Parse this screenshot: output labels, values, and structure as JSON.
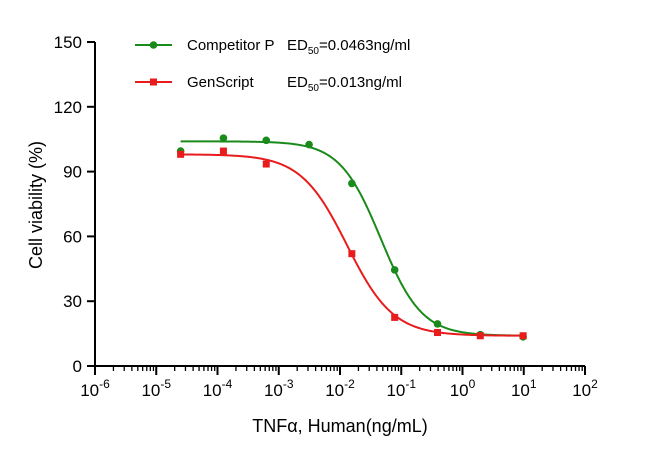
{
  "chart_data": {
    "type": "scatter",
    "xlabel": "TNFα, Human(ng/mL)",
    "ylabel": "Cell viability (%)",
    "x_scale": "log",
    "xlim": [
      1e-06,
      100
    ],
    "ylim": [
      0,
      150
    ],
    "x_ticks": [
      {
        "base": "10",
        "exp": "-6"
      },
      {
        "base": "10",
        "exp": "-5"
      },
      {
        "base": "10",
        "exp": "-4"
      },
      {
        "base": "10",
        "exp": "-3"
      },
      {
        "base": "10",
        "exp": "-2"
      },
      {
        "base": "10",
        "exp": "-1"
      },
      {
        "base": "10",
        "exp": "0"
      },
      {
        "base": "10",
        "exp": "1"
      },
      {
        "base": "10",
        "exp": "2"
      }
    ],
    "y_ticks": [
      "0",
      "30",
      "60",
      "90",
      "120",
      "150"
    ],
    "legend_position": "top-left",
    "series": [
      {
        "name": "Competitor P",
        "ed50_label": "ED",
        "ed50_sub": "50",
        "ed50_value": "=0.0463ng/ml",
        "color": "#1a8a1a",
        "marker": "circle",
        "x": [
          2.5e-05,
          0.000125,
          0.000625,
          0.003125,
          0.015625,
          0.078125,
          0.390625,
          1.953125,
          9.765625
        ],
        "y": [
          99.5,
          105.5,
          104.5,
          102.5,
          84.5,
          44.5,
          19.5,
          14.5,
          13.5
        ],
        "fit": {
          "top": 104,
          "bottom": 14,
          "ec50": 0.0463,
          "hill": 1.3
        }
      },
      {
        "name": "GenScript",
        "ed50_label": "ED",
        "ed50_sub": "50",
        "ed50_value": "=0.013ng/ml",
        "color": "#e81c1c",
        "marker": "square",
        "x": [
          2.5e-05,
          0.000125,
          0.000625,
          0.015625,
          0.078125,
          0.390625,
          1.953125,
          9.765625
        ],
        "y": [
          98,
          99.5,
          93.5,
          52,
          22.5,
          15.5,
          14,
          14
        ],
        "fit": {
          "top": 98,
          "bottom": 14,
          "ec50": 0.013,
          "hill": 1.15
        }
      }
    ]
  }
}
